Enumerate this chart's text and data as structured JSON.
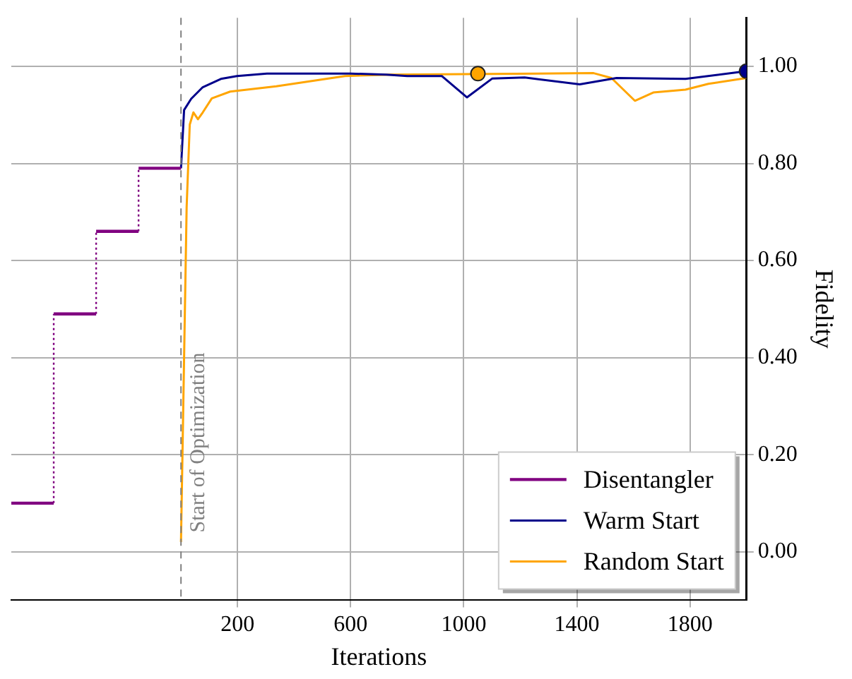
{
  "chart_data": {
    "type": "line",
    "xlabel": "Iterations",
    "ylabel": "Fidelity",
    "xlim": [
      -600,
      2000
    ],
    "xticks": [
      200,
      600,
      1000,
      1400,
      1800
    ],
    "ylim": [
      -0.1,
      1.1
    ],
    "yticks": [
      {
        "value": 0,
        "label": "0.00"
      },
      {
        "value": 0.2,
        "label": "0.20"
      },
      {
        "value": 0.4,
        "label": "0.40"
      },
      {
        "value": 0.6,
        "label": "0.60"
      },
      {
        "value": 0.8,
        "label": "0.80"
      },
      {
        "value": 1,
        "label": "1.00"
      }
    ],
    "grid": true,
    "legend": "bottom right",
    "marker": "none",
    "ref_lines": [
      {
        "axis": "x",
        "value": 0,
        "label": "Start of Optimization",
        "color": "#808080",
        "line_style": "dashed"
      }
    ],
    "series": [
      {
        "name": "Disentangler",
        "type": "step",
        "color": "#800080",
        "x": [
          -600,
          -450,
          -300,
          -150,
          0
        ],
        "values": [
          0.1,
          0.49,
          0.66,
          0.79,
          0.79
        ]
      },
      {
        "name": "Warm Start",
        "type": "line",
        "color": "#00008b",
        "x": [
          0,
          11,
          36,
          77,
          141,
          198,
          304,
          600,
          727,
          800,
          922,
          1011,
          1101,
          1215,
          1410,
          1540,
          1784,
          2000
        ],
        "values": [
          0.79,
          0.91,
          0.933,
          0.957,
          0.974,
          0.98,
          0.985,
          0.985,
          0.983,
          0.98,
          0.98,
          0.936,
          0.975,
          0.977,
          0.963,
          0.976,
          0.974,
          0.99
        ]
      },
      {
        "name": "Random Start",
        "type": "line",
        "color": "#ffa500",
        "x": [
          0,
          20,
          31,
          44,
          60,
          77,
          109,
          174,
          337,
          580,
          743,
          1459,
          1522,
          1605,
          1670,
          1784,
          1865,
          2000
        ],
        "values": [
          0.02,
          0.71,
          0.88,
          0.905,
          0.891,
          0.905,
          0.934,
          0.948,
          0.959,
          0.98,
          0.983,
          0.986,
          0.976,
          0.929,
          0.946,
          0.952,
          0.964,
          0.976
        ]
      },
      {
        "type": "scatter",
        "marker": "circle",
        "color": "#ffa500",
        "x": [
          1050
        ],
        "values": [
          0.985
        ]
      },
      {
        "type": "scatter",
        "marker": "circle",
        "color": "#00008b",
        "x": [
          2000
        ],
        "values": [
          0.99
        ]
      }
    ]
  }
}
